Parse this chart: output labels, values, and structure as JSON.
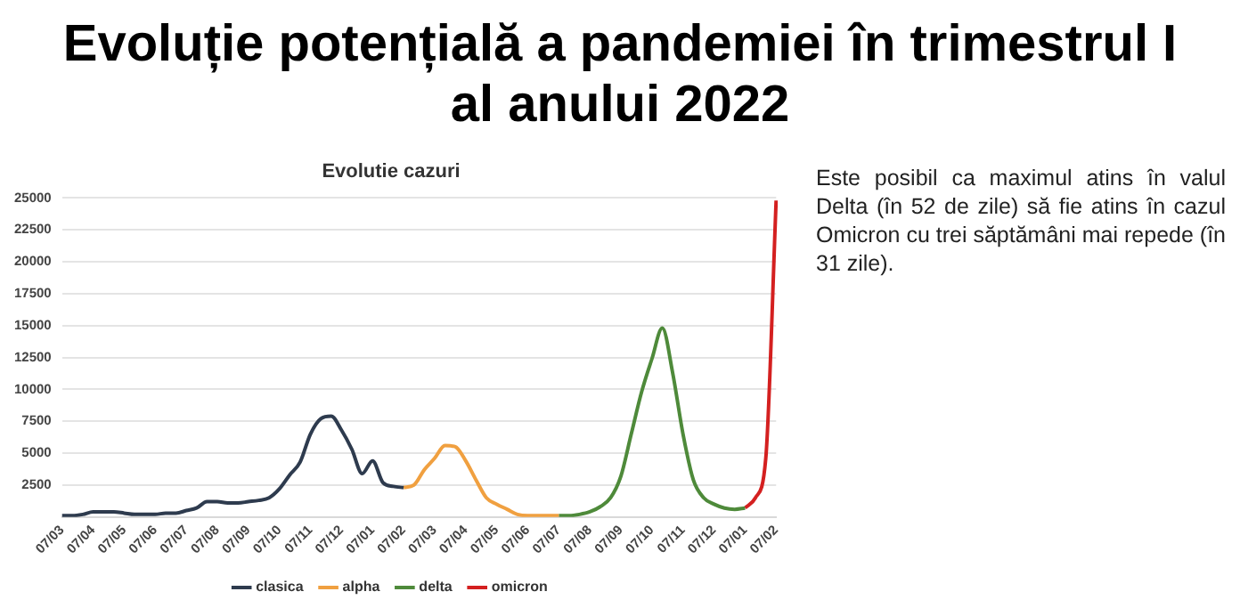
{
  "chart_data": {
    "type": "line",
    "title": "Evoluție potențială a pandemiei în trimestrul I al anului 2022",
    "subtitle": "Evolutie cazuri",
    "annotations": [
      "Este posibil ca maximul atins în valul Delta (în 52 de zile) să fie atins în cazul Omicron cu trei săptămâni mai repede (în 31 zile)."
    ],
    "categories": [
      "07/03",
      null,
      null,
      "07/04",
      null,
      null,
      "07/05",
      null,
      null,
      "07/06",
      null,
      null,
      "07/07",
      null,
      null,
      "07/08",
      null,
      null,
      "07/09",
      null,
      null,
      "07/10",
      null,
      null,
      "07/11",
      null,
      null,
      "07/12",
      null,
      null,
      "07/01",
      null,
      null,
      "07/02",
      null,
      null,
      "07/03",
      null,
      null,
      "07/04",
      null,
      null,
      "07/05",
      null,
      null,
      "07/06",
      null,
      null,
      "07/07",
      null,
      null,
      "07/08",
      null,
      null,
      "07/09",
      null,
      null,
      "07/10",
      null,
      null,
      "07/11",
      null,
      null,
      "07/12",
      null,
      null,
      "07/01",
      null,
      null,
      "07/02"
    ],
    "series": [
      {
        "name": "clasica",
        "color": "#2e3b4e",
        "values": [
          100,
          100,
          200,
          400,
          400,
          400,
          300,
          200,
          200,
          200,
          300,
          300,
          500,
          700,
          1200,
          1200,
          1100,
          1100,
          1200,
          1300,
          1500,
          2200,
          3300,
          4300,
          6500,
          7700,
          7900,
          6800,
          5300,
          3400,
          4400,
          2700,
          2400,
          2300,
          null,
          null,
          null,
          null,
          null,
          null,
          null,
          null,
          null,
          null,
          null,
          null,
          null,
          null,
          null,
          null,
          null,
          null,
          null,
          null,
          null,
          null,
          null,
          null,
          null,
          null,
          null,
          null,
          null,
          null,
          null,
          null,
          null,
          null,
          null,
          null
        ]
      },
      {
        "name": "alpha",
        "color": "#f0a040",
        "values": [
          null,
          null,
          null,
          null,
          null,
          null,
          null,
          null,
          null,
          null,
          null,
          null,
          null,
          null,
          null,
          null,
          null,
          null,
          null,
          null,
          null,
          null,
          null,
          null,
          null,
          null,
          null,
          null,
          null,
          null,
          null,
          null,
          null,
          2300,
          2500,
          3700,
          4600,
          5600,
          5500,
          4400,
          2900,
          1500,
          1000,
          600,
          200,
          100,
          100,
          100,
          100,
          null,
          null,
          null,
          null,
          null,
          null,
          null,
          null,
          null,
          null,
          null,
          null,
          null,
          null,
          null,
          null,
          null,
          null,
          null,
          null,
          null
        ]
      },
      {
        "name": "delta",
        "color": "#4e8a3a",
        "values": [
          null,
          null,
          null,
          null,
          null,
          null,
          null,
          null,
          null,
          null,
          null,
          null,
          null,
          null,
          null,
          null,
          null,
          null,
          null,
          null,
          null,
          null,
          null,
          null,
          null,
          null,
          null,
          null,
          null,
          null,
          null,
          null,
          null,
          null,
          null,
          null,
          null,
          null,
          null,
          null,
          null,
          null,
          null,
          null,
          null,
          null,
          null,
          null,
          100,
          100,
          200,
          400,
          800,
          1500,
          3200,
          6500,
          9800,
          12400,
          14800,
          11300,
          6500,
          2900,
          1500,
          1000,
          700,
          600,
          700,
          null,
          null,
          null
        ]
      },
      {
        "name": "omicron",
        "color": "#d42020",
        "values": [
          null,
          null,
          null,
          null,
          null,
          null,
          null,
          null,
          null,
          null,
          null,
          null,
          null,
          null,
          null,
          null,
          null,
          null,
          null,
          null,
          null,
          null,
          null,
          null,
          null,
          null,
          null,
          null,
          null,
          null,
          null,
          null,
          null,
          null,
          null,
          null,
          null,
          null,
          null,
          null,
          null,
          null,
          null,
          null,
          null,
          null,
          null,
          null,
          null,
          null,
          null,
          null,
          null,
          null,
          null,
          null,
          null,
          null,
          null,
          null,
          null,
          null,
          null,
          null,
          null,
          null,
          700,
          1500,
          4600,
          24800
        ]
      }
    ],
    "ylim": [
      0,
      25000
    ],
    "yticks": [
      2500,
      5000,
      7500,
      10000,
      12500,
      15000,
      17500,
      20000,
      22500,
      25000
    ],
    "grid": "y",
    "legend": "bottom",
    "marker": "none",
    "line_style": "solid"
  }
}
